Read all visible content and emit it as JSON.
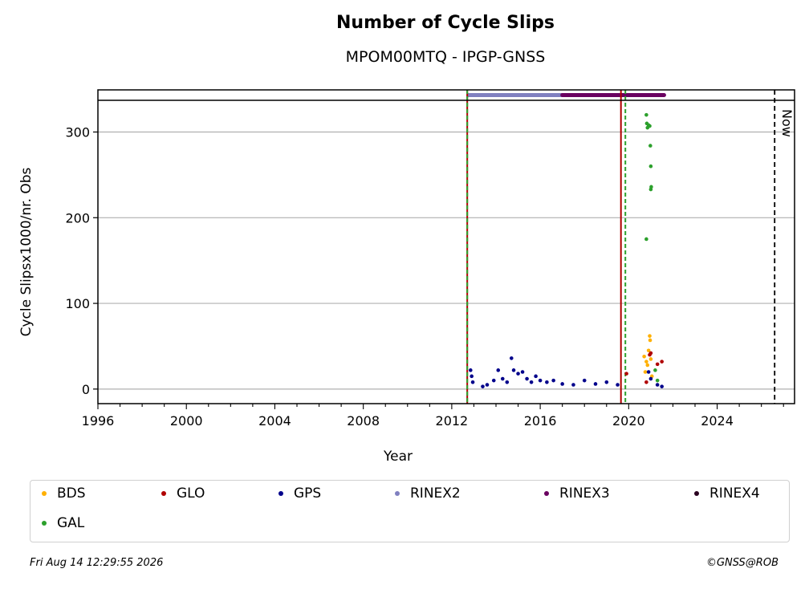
{
  "chart_data": {
    "type": "scatter",
    "title": "Number of Cycle Slips",
    "subtitle": "MPOM00MTQ - IPGP-GNSS",
    "xlabel": "Year",
    "ylabel": "Cycle Slipsx1000/nr. Obs",
    "xlim": [
      1996,
      2027.5
    ],
    "ylim": [
      -17,
      337
    ],
    "x_ticks": [
      1996,
      2000,
      2004,
      2008,
      2012,
      2016,
      2020,
      2024
    ],
    "y_ticks": [
      0,
      100,
      200,
      300
    ],
    "grid": "horizontal",
    "now_label": "Now",
    "now_x": 2026.6,
    "vertical_markers": [
      {
        "x": 2012.7,
        "color": "#b00000",
        "style": "solid"
      },
      {
        "x": 2012.7,
        "color": "#2ca02c",
        "style": "dashed"
      },
      {
        "x": 2019.65,
        "color": "#b00000",
        "style": "solid"
      },
      {
        "x": 2019.85,
        "color": "#2ca02c",
        "style": "dashed"
      }
    ],
    "rinex_bands": [
      {
        "name": "RINEX2",
        "color": "#8080c0",
        "start": 2012.75,
        "end": 2017.0
      },
      {
        "name": "RINEX3",
        "color": "#6a0060",
        "start": 2017.0,
        "end": 2021.6
      }
    ],
    "series": [
      {
        "name": "BDS",
        "color": "#ffb000",
        "points": [
          [
            2020.7,
            38
          ],
          [
            2020.8,
            32
          ],
          [
            2020.9,
            45
          ],
          [
            2020.95,
            62
          ],
          [
            2020.97,
            57
          ],
          [
            2020.85,
            28
          ],
          [
            2021.0,
            35
          ],
          [
            2020.75,
            20
          ],
          [
            2021.05,
            15
          ]
        ]
      },
      {
        "name": "GLO",
        "color": "#b00000",
        "points": [
          [
            2019.9,
            18
          ],
          [
            2020.95,
            40
          ],
          [
            2021.0,
            42
          ],
          [
            2021.3,
            29
          ],
          [
            2021.5,
            32
          ],
          [
            2020.8,
            8
          ]
        ]
      },
      {
        "name": "GPS",
        "color": "#00008b",
        "points": [
          [
            2012.85,
            22
          ],
          [
            2012.9,
            15
          ],
          [
            2012.95,
            8
          ],
          [
            2013.4,
            3
          ],
          [
            2013.6,
            5
          ],
          [
            2013.9,
            10
          ],
          [
            2014.1,
            22
          ],
          [
            2014.3,
            12
          ],
          [
            2014.5,
            8
          ],
          [
            2014.7,
            36
          ],
          [
            2014.8,
            22
          ],
          [
            2015.0,
            18
          ],
          [
            2015.2,
            20
          ],
          [
            2015.4,
            12
          ],
          [
            2015.6,
            8
          ],
          [
            2015.8,
            15
          ],
          [
            2016.0,
            10
          ],
          [
            2016.3,
            8
          ],
          [
            2016.6,
            10
          ],
          [
            2017.0,
            6
          ],
          [
            2017.5,
            5
          ],
          [
            2018.0,
            10
          ],
          [
            2018.5,
            6
          ],
          [
            2019.0,
            8
          ],
          [
            2019.5,
            5
          ],
          [
            2020.9,
            20
          ],
          [
            2021.0,
            12
          ],
          [
            2021.3,
            5
          ],
          [
            2021.5,
            3
          ]
        ]
      },
      {
        "name": "RINEX2",
        "color": "#8080c0",
        "points": []
      },
      {
        "name": "RINEX3",
        "color": "#6a0060",
        "points": []
      },
      {
        "name": "RINEX4",
        "color": "#2a0020",
        "points": []
      },
      {
        "name": "GAL",
        "color": "#2ca02c",
        "points": [
          [
            2020.8,
            320
          ],
          [
            2020.82,
            310
          ],
          [
            2020.85,
            305
          ],
          [
            2020.9,
            308
          ],
          [
            2020.95,
            307
          ],
          [
            2020.98,
            284
          ],
          [
            2021.0,
            260
          ],
          [
            2021.02,
            236
          ],
          [
            2021.0,
            233
          ],
          [
            2020.8,
            175
          ],
          [
            2021.2,
            22
          ],
          [
            2021.3,
            10
          ]
        ]
      }
    ]
  },
  "legend": {
    "items": [
      {
        "label": "BDS",
        "color": "#ffb000"
      },
      {
        "label": "GLO",
        "color": "#b00000"
      },
      {
        "label": "GPS",
        "color": "#00008b"
      },
      {
        "label": "RINEX2",
        "color": "#8080c0"
      },
      {
        "label": "RINEX3",
        "color": "#6a0060"
      },
      {
        "label": "RINEX4",
        "color": "#2a0020"
      },
      {
        "label": "GAL",
        "color": "#2ca02c"
      }
    ]
  },
  "footer": {
    "timestamp": "Fri Aug 14 12:29:55 2026",
    "copyright": "©GNSS@ROB"
  }
}
